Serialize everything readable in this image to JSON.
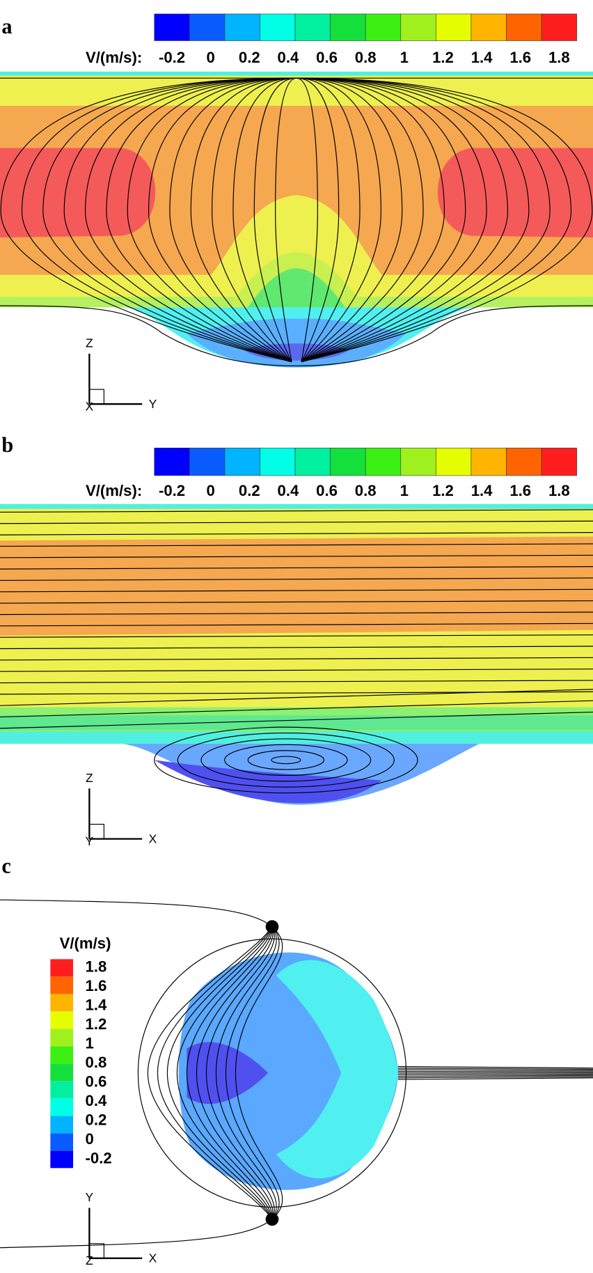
{
  "panels": [
    {
      "label": "a",
      "colorbar": {
        "title": "V/(m/s):",
        "ticks": [
          -0.2,
          0,
          0.2,
          0.4,
          0.6,
          0.8,
          1,
          1.2,
          1.4,
          1.6,
          1.8
        ],
        "colors": [
          "#0000ff",
          "#0a5cff",
          "#00b4ff",
          "#00ffe6",
          "#00f0a0",
          "#14e03c",
          "#3cf014",
          "#a0f01e",
          "#e6ff00",
          "#ffb400",
          "#ff6400",
          "#ff1e1e"
        ]
      },
      "axes": {
        "vertical": "Z",
        "horizontal": "Y",
        "origin": "X"
      }
    },
    {
      "label": "b",
      "colorbar": {
        "title": "V/(m/s):",
        "ticks": [
          -0.2,
          0,
          0.2,
          0.4,
          0.6,
          0.8,
          1,
          1.2,
          1.4,
          1.6,
          1.8
        ],
        "colors": [
          "#0000ff",
          "#0a5cff",
          "#00b4ff",
          "#00ffe6",
          "#00f0a0",
          "#14e03c",
          "#3cf014",
          "#a0f01e",
          "#e6ff00",
          "#ffb400",
          "#ff6400",
          "#ff1e1e"
        ]
      },
      "axes": {
        "vertical": "Z",
        "horizontal": "X",
        "origin": "Y"
      }
    },
    {
      "label": "c",
      "colorbar": {
        "title": "V/(m/s)",
        "ticks": [
          -0.2,
          0,
          0.2,
          0.4,
          0.6,
          0.8,
          1,
          1.2,
          1.4,
          1.6,
          1.8
        ],
        "colors": [
          "#0000ff",
          "#0a5cff",
          "#00b4ff",
          "#00ffe6",
          "#00f0a0",
          "#14e03c",
          "#3cf014",
          "#a0f01e",
          "#e6ff00",
          "#ffb400",
          "#ff6400",
          "#ff1e1e"
        ]
      },
      "axes": {
        "vertical": "Y",
        "horizontal": "X",
        "origin": "Z"
      }
    }
  ]
}
